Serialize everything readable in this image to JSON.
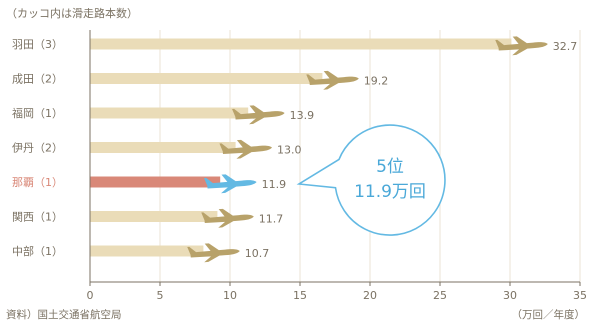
{
  "chart_data": {
    "type": "bar",
    "orientation": "horizontal",
    "note": "（カッコ内は滑走路本数）",
    "source": "資料）国土交通省航空局",
    "unit_label": "（万回／年度）",
    "xlim": [
      0,
      35
    ],
    "xticks": [
      "0",
      "5",
      "10",
      "15",
      "20",
      "25",
      "30",
      "35"
    ],
    "grid": true,
    "categories": [
      "羽田（3）",
      "成田（2）",
      "福岡（1）",
      "伊丹（2）",
      "那覇（1）",
      "関西（1）",
      "中部（1）"
    ],
    "values": [
      32.7,
      19.2,
      13.9,
      13.0,
      11.9,
      11.7,
      10.7
    ],
    "value_labels": [
      "32.7",
      "19.2",
      "13.9",
      "13.0",
      "11.9",
      "11.7",
      "10.7"
    ],
    "highlight_index": 4,
    "callout": {
      "line1": "5位",
      "line2": "11.9万回"
    },
    "colors": {
      "bar": "#eadcb8",
      "highlight_bar": "#d98878",
      "plane": "#b8a26a",
      "highlight_plane": "#63b9e3",
      "text": "#7b7263",
      "highlight_text": "#d98878",
      "axis": "#7b7263",
      "grid": "#ebe3d6",
      "callout_stroke": "#63b9e3",
      "callout_text": "#4aa8d8"
    }
  }
}
